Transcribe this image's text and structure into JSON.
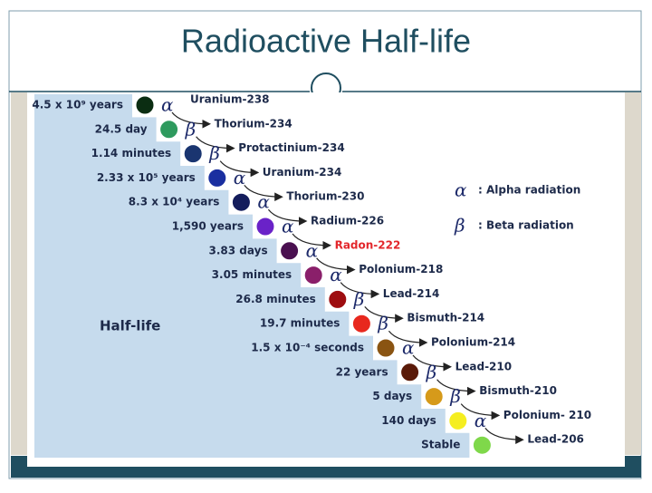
{
  "title": "Radioactive Half-life",
  "half_life_label": "Half-life",
  "legend": [
    {
      "symbol": "α",
      "label": ": Alpha radiation"
    },
    {
      "symbol": "β",
      "label": ": Beta radiation"
    }
  ],
  "chain": [
    {
      "half_life": "4.5 x 10⁹ years",
      "color": "#0b2d12",
      "radiation": "α",
      "nuclide": "Uranium-238"
    },
    {
      "half_life": "24.5 day",
      "color": "#2e9a5e",
      "radiation": "β",
      "nuclide": "Thorium-234"
    },
    {
      "half_life": "1.14 minutes",
      "color": "#1a3570",
      "radiation": "β",
      "nuclide": "Protactinium-234"
    },
    {
      "half_life": "2.33 x 10⁵ years",
      "color": "#1a2fa0",
      "radiation": "α",
      "nuclide": "Uranium-234"
    },
    {
      "half_life": "8.3 x 10⁴ years",
      "color": "#141d5c",
      "radiation": "α",
      "nuclide": "Thorium-230"
    },
    {
      "half_life": "1,590 years",
      "color": "#6a22c8",
      "radiation": "α",
      "nuclide": "Radium-226"
    },
    {
      "half_life": "3.83 days",
      "color": "#4a1050",
      "radiation": "α",
      "nuclide": "Radon-222",
      "nuclide_color": "#e3262b"
    },
    {
      "half_life": "3.05 minutes",
      "color": "#8a1f6a",
      "radiation": "α",
      "nuclide": "Polonium-218"
    },
    {
      "half_life": "26.8 minutes",
      "color": "#9e0d10",
      "radiation": "β",
      "nuclide": "Lead-214"
    },
    {
      "half_life": "19.7 minutes",
      "color": "#e8281e",
      "radiation": "β",
      "nuclide": "Bismuth-214"
    },
    {
      "half_life": "1.5 x 10⁻⁴ seconds",
      "color": "#8a5412",
      "radiation": "α",
      "nuclide": "Polonium-214"
    },
    {
      "half_life": "22 years",
      "color": "#5a1a08",
      "radiation": "β",
      "nuclide": "Lead-210"
    },
    {
      "half_life": "5 days",
      "color": "#d69a1a",
      "radiation": "β",
      "nuclide": "Bismuth-210"
    },
    {
      "half_life": "140 days",
      "color": "#f5ee20",
      "radiation": "α",
      "nuclide": "Polonium- 210"
    },
    {
      "half_life": "Stable",
      "color": "#7fd84a",
      "nuclide": "Lead-206"
    }
  ]
}
